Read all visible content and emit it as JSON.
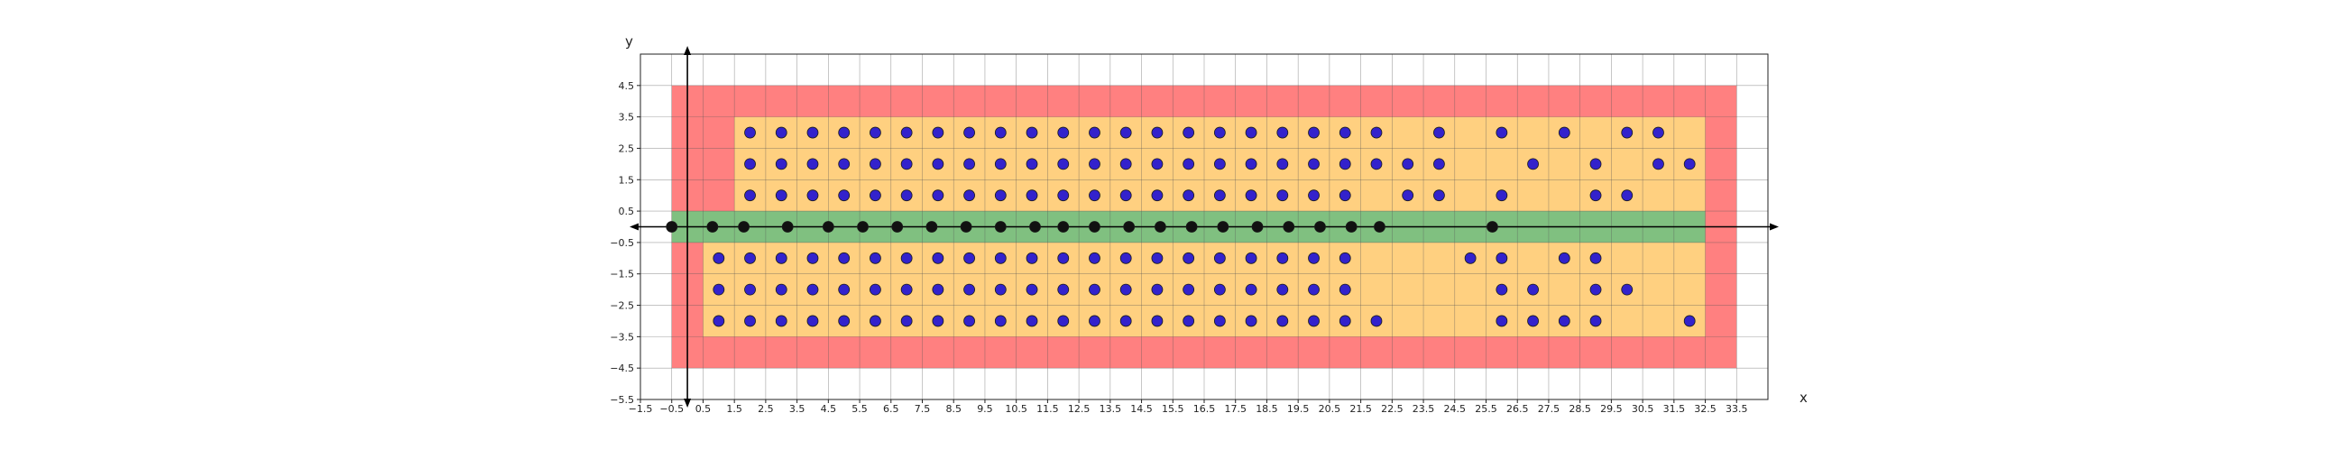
{
  "chart_data": {
    "type": "scatter",
    "title": "",
    "xlabel": "x",
    "ylabel": "y",
    "xlim": [
      -1.5,
      34.5
    ],
    "ylim": [
      -5.5,
      5.5
    ],
    "x_ticks": [
      -1.5,
      -0.5,
      0.5,
      1.5,
      2.5,
      3.5,
      4.5,
      5.5,
      6.5,
      7.5,
      8.5,
      9.5,
      10.5,
      11.5,
      12.5,
      13.5,
      14.5,
      15.5,
      16.5,
      17.5,
      18.5,
      19.5,
      20.5,
      21.5,
      22.5,
      23.5,
      24.5,
      25.5,
      26.5,
      27.5,
      28.5,
      29.5,
      30.5,
      31.5,
      32.5,
      33.5
    ],
    "x_tick_labels": [
      "−1.5",
      "−0.5",
      "0.5",
      "1.5",
      "2.5",
      "3.5",
      "4.5",
      "5.5",
      "6.5",
      "7.5",
      "8.5",
      "9.5",
      "10.5",
      "11.5",
      "12.5",
      "13.5",
      "14.5",
      "15.5",
      "16.5",
      "17.5",
      "18.5",
      "19.5",
      "20.5",
      "21.5",
      "22.5",
      "23.5",
      "24.5",
      "25.5",
      "26.5",
      "27.5",
      "28.5",
      "29.5",
      "30.5",
      "31.5",
      "32.5",
      "33.5"
    ],
    "y_ticks": [
      4.5,
      3.5,
      2.5,
      1.5,
      0.5,
      -0.5,
      -1.5,
      -2.5,
      -3.5,
      -4.5,
      -5.5
    ],
    "y_tick_labels": [
      "4.5",
      "3.5",
      "2.5",
      "1.5",
      "0.5",
      "−0.5",
      "−1.5",
      "−2.5",
      "−3.5",
      "−4.5",
      "−5.5"
    ],
    "grid": true,
    "regions": [
      {
        "name": "outer",
        "color": "#ff8080",
        "x": [
          -0.5,
          33.5
        ],
        "y": [
          -4.5,
          4.5
        ]
      },
      {
        "name": "upper",
        "color": "#ffd080",
        "x": [
          1.5,
          32.5
        ],
        "y": [
          0.5,
          3.5
        ]
      },
      {
        "name": "lower",
        "color": "#ffd080",
        "x": [
          0.5,
          32.5
        ],
        "y": [
          -3.5,
          -0.5
        ]
      },
      {
        "name": "band",
        "color": "#80c080",
        "x": [
          -0.5,
          32.5
        ],
        "y": [
          -0.5,
          0.5
        ]
      }
    ],
    "series": [
      {
        "color": "#3322cc",
        "points": [
          [
            2,
            3
          ],
          [
            3,
            3
          ],
          [
            4,
            3
          ],
          [
            5,
            3
          ],
          [
            6,
            3
          ],
          [
            7,
            3
          ],
          [
            8,
            3
          ],
          [
            9,
            3
          ],
          [
            10,
            3
          ],
          [
            11,
            3
          ],
          [
            12,
            3
          ],
          [
            13,
            3
          ],
          [
            14,
            3
          ],
          [
            15,
            3
          ],
          [
            16,
            3
          ],
          [
            17,
            3
          ],
          [
            18,
            3
          ],
          [
            19,
            3
          ],
          [
            20,
            3
          ],
          [
            21,
            3
          ],
          [
            22,
            3
          ],
          [
            24,
            3
          ],
          [
            26,
            3
          ],
          [
            28,
            3
          ],
          [
            30,
            3
          ],
          [
            31,
            3
          ],
          [
            2,
            2
          ],
          [
            3,
            2
          ],
          [
            4,
            2
          ],
          [
            5,
            2
          ],
          [
            6,
            2
          ],
          [
            7,
            2
          ],
          [
            8,
            2
          ],
          [
            9,
            2
          ],
          [
            10,
            2
          ],
          [
            11,
            2
          ],
          [
            12,
            2
          ],
          [
            13,
            2
          ],
          [
            14,
            2
          ],
          [
            15,
            2
          ],
          [
            16,
            2
          ],
          [
            17,
            2
          ],
          [
            18,
            2
          ],
          [
            19,
            2
          ],
          [
            20,
            2
          ],
          [
            21,
            2
          ],
          [
            22,
            2
          ],
          [
            23,
            2
          ],
          [
            24,
            2
          ],
          [
            27,
            2
          ],
          [
            29,
            2
          ],
          [
            31,
            2
          ],
          [
            32,
            2
          ],
          [
            2,
            1
          ],
          [
            3,
            1
          ],
          [
            4,
            1
          ],
          [
            5,
            1
          ],
          [
            6,
            1
          ],
          [
            7,
            1
          ],
          [
            8,
            1
          ],
          [
            9,
            1
          ],
          [
            10,
            1
          ],
          [
            11,
            1
          ],
          [
            12,
            1
          ],
          [
            13,
            1
          ],
          [
            14,
            1
          ],
          [
            15,
            1
          ],
          [
            16,
            1
          ],
          [
            17,
            1
          ],
          [
            18,
            1
          ],
          [
            19,
            1
          ],
          [
            20,
            1
          ],
          [
            21,
            1
          ],
          [
            23,
            1
          ],
          [
            24,
            1
          ],
          [
            26,
            1
          ],
          [
            29,
            1
          ],
          [
            30,
            1
          ],
          [
            1,
            -1
          ],
          [
            2,
            -1
          ],
          [
            3,
            -1
          ],
          [
            4,
            -1
          ],
          [
            5,
            -1
          ],
          [
            6,
            -1
          ],
          [
            7,
            -1
          ],
          [
            8,
            -1
          ],
          [
            9,
            -1
          ],
          [
            10,
            -1
          ],
          [
            11,
            -1
          ],
          [
            12,
            -1
          ],
          [
            13,
            -1
          ],
          [
            14,
            -1
          ],
          [
            15,
            -1
          ],
          [
            16,
            -1
          ],
          [
            17,
            -1
          ],
          [
            18,
            -1
          ],
          [
            19,
            -1
          ],
          [
            20,
            -1
          ],
          [
            21,
            -1
          ],
          [
            25,
            -1
          ],
          [
            26,
            -1
          ],
          [
            28,
            -1
          ],
          [
            29,
            -1
          ],
          [
            1,
            -2
          ],
          [
            2,
            -2
          ],
          [
            3,
            -2
          ],
          [
            4,
            -2
          ],
          [
            5,
            -2
          ],
          [
            6,
            -2
          ],
          [
            7,
            -2
          ],
          [
            8,
            -2
          ],
          [
            9,
            -2
          ],
          [
            10,
            -2
          ],
          [
            11,
            -2
          ],
          [
            12,
            -2
          ],
          [
            13,
            -2
          ],
          [
            14,
            -2
          ],
          [
            15,
            -2
          ],
          [
            16,
            -2
          ],
          [
            17,
            -2
          ],
          [
            18,
            -2
          ],
          [
            19,
            -2
          ],
          [
            20,
            -2
          ],
          [
            21,
            -2
          ],
          [
            26,
            -2
          ],
          [
            27,
            -2
          ],
          [
            29,
            -2
          ],
          [
            30,
            -2
          ],
          [
            1,
            -3
          ],
          [
            2,
            -3
          ],
          [
            3,
            -3
          ],
          [
            4,
            -3
          ],
          [
            5,
            -3
          ],
          [
            6,
            -3
          ],
          [
            7,
            -3
          ],
          [
            8,
            -3
          ],
          [
            9,
            -3
          ],
          [
            10,
            -3
          ],
          [
            11,
            -3
          ],
          [
            12,
            -3
          ],
          [
            13,
            -3
          ],
          [
            14,
            -3
          ],
          [
            15,
            -3
          ],
          [
            16,
            -3
          ],
          [
            17,
            -3
          ],
          [
            18,
            -3
          ],
          [
            19,
            -3
          ],
          [
            20,
            -3
          ],
          [
            21,
            -3
          ],
          [
            22,
            -3
          ],
          [
            26,
            -3
          ],
          [
            27,
            -3
          ],
          [
            28,
            -3
          ],
          [
            29,
            -3
          ],
          [
            32,
            -3
          ]
        ]
      },
      {
        "color": "#111111",
        "points": [
          [
            -0.5,
            0
          ],
          [
            0.8,
            0
          ],
          [
            1.8,
            0
          ],
          [
            3.2,
            0
          ],
          [
            4.5,
            0
          ],
          [
            5.6,
            0
          ],
          [
            6.7,
            0
          ],
          [
            7.8,
            0
          ],
          [
            8.9,
            0
          ],
          [
            10.0,
            0
          ],
          [
            11.1,
            0
          ],
          [
            12.0,
            0
          ],
          [
            13.0,
            0
          ],
          [
            14.1,
            0
          ],
          [
            15.1,
            0
          ],
          [
            16.1,
            0
          ],
          [
            17.1,
            0
          ],
          [
            18.2,
            0
          ],
          [
            19.2,
            0
          ],
          [
            20.2,
            0
          ],
          [
            21.2,
            0
          ],
          [
            22.1,
            0
          ],
          [
            25.7,
            0
          ]
        ]
      }
    ]
  }
}
